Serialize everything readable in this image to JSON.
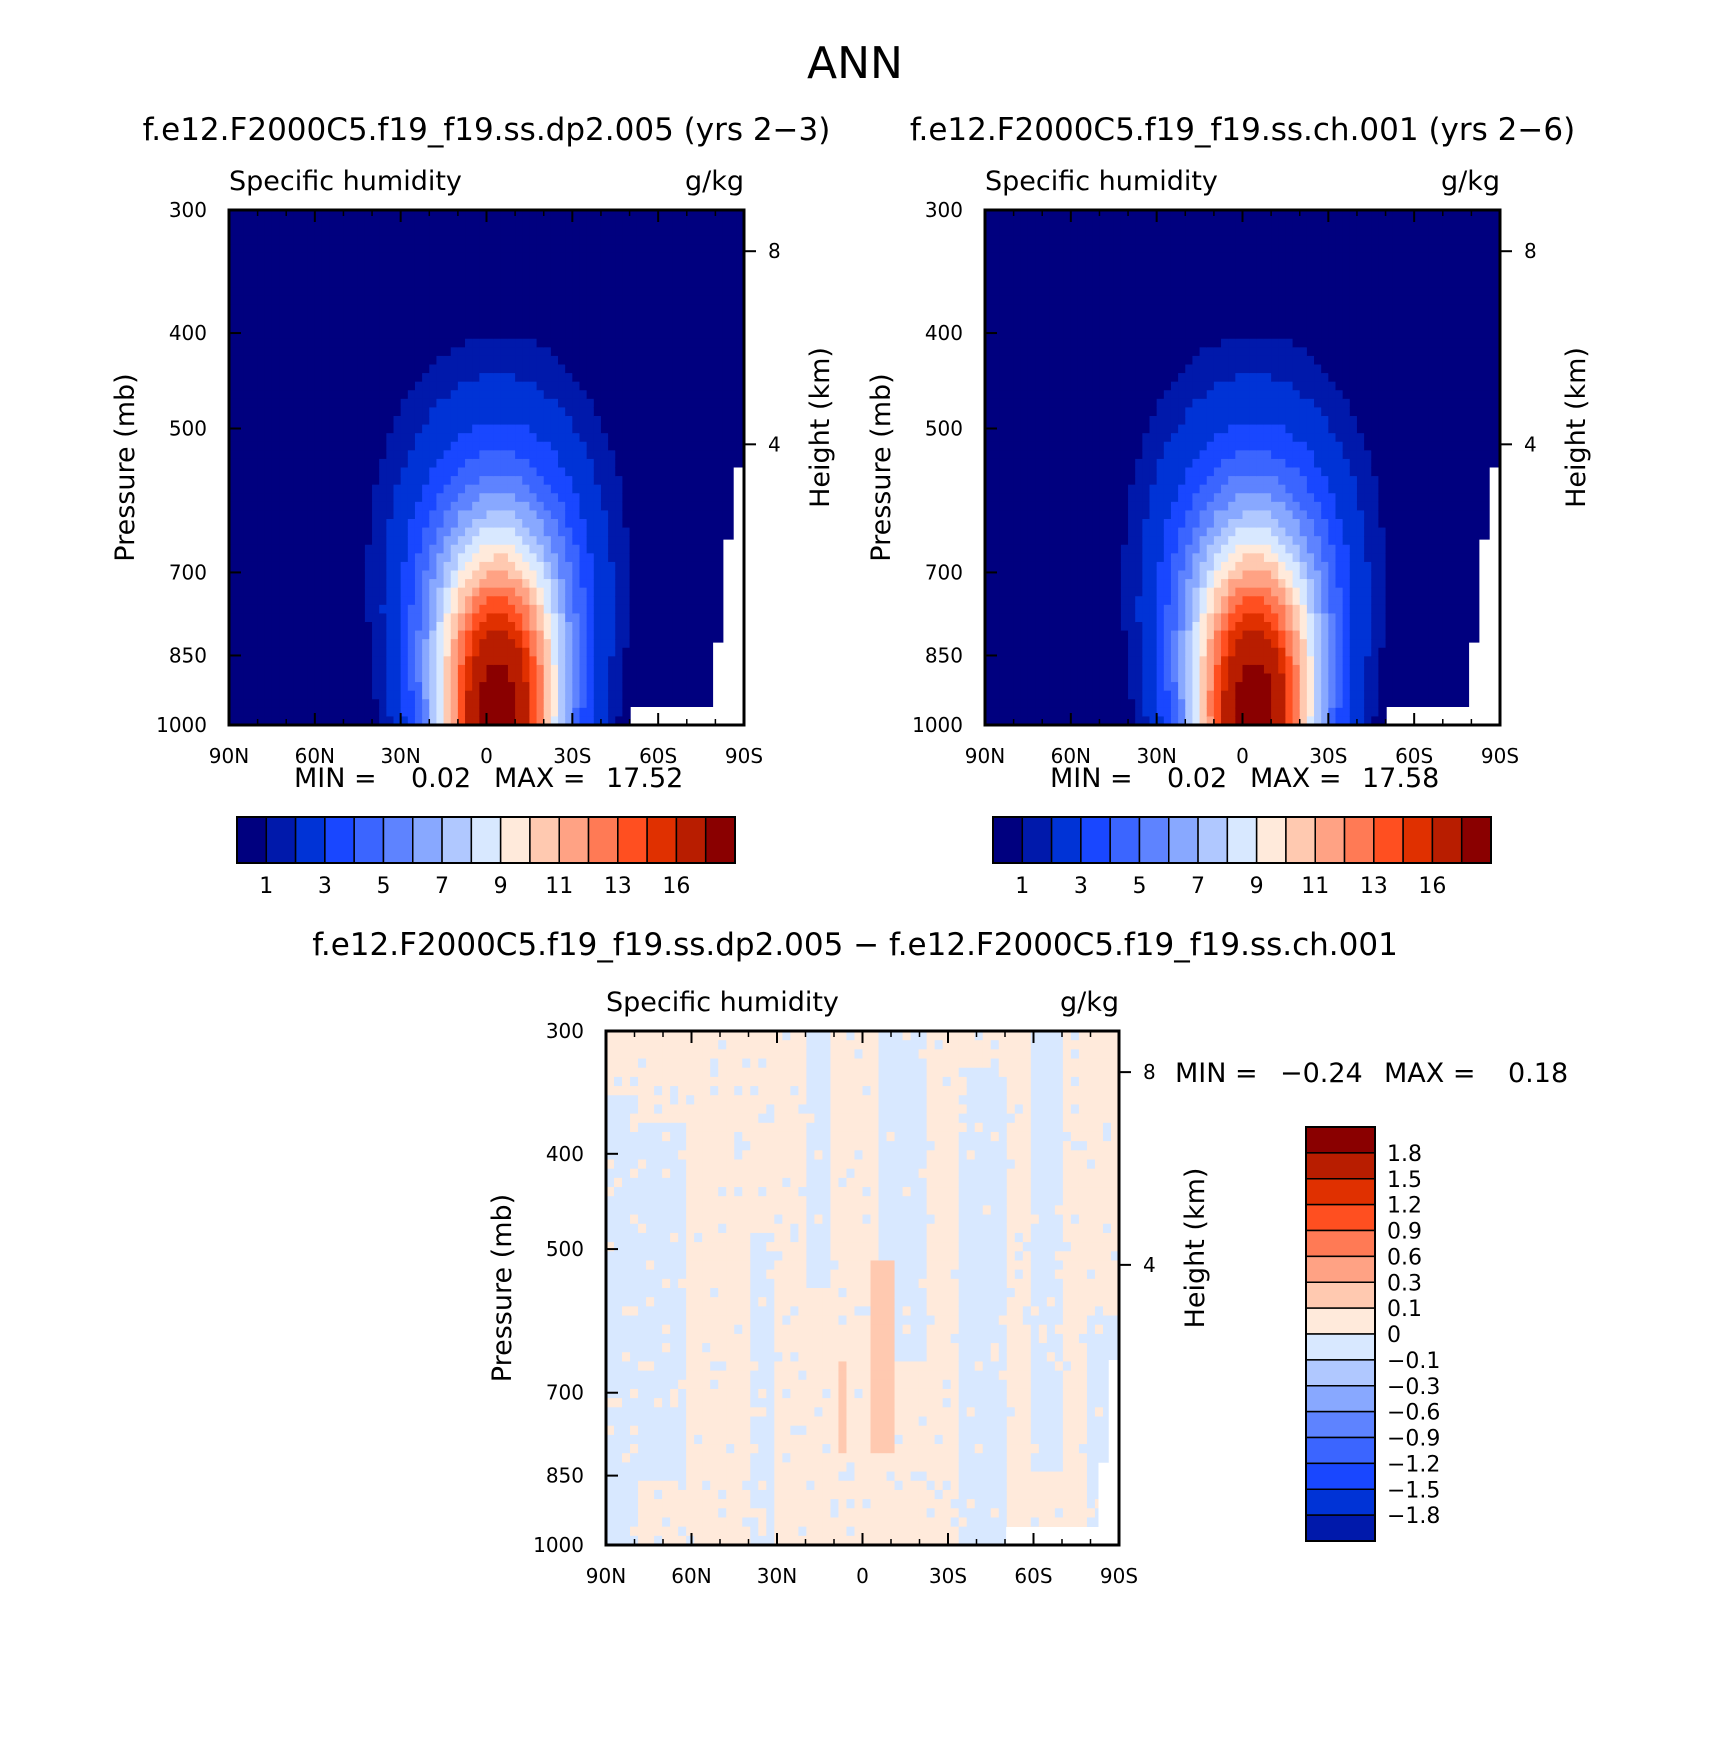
{
  "figure": {
    "title": "ANN",
    "diff_title": "f.e12.F2000C5.f19_f19.ss.dp2.005 − f.e12.F2000C5.f19_f19.ss.ch.001"
  },
  "colors": {
    "abs_palette": [
      "#00007f",
      "#0019ab",
      "#0033d6",
      "#1947ff",
      "#3b65ff",
      "#5e83ff",
      "#88a8ff",
      "#b0c8ff",
      "#d8e8ff",
      "#ffeadb",
      "#ffc9b0",
      "#ffa284",
      "#ff7a55",
      "#ff4f20",
      "#e03000",
      "#b81d00",
      "#8a0000"
    ],
    "diff_palette": [
      "#00007f",
      "#0019ab",
      "#0033d6",
      "#1947ff",
      "#3b65ff",
      "#5e83ff",
      "#88a8ff",
      "#b0c8ff",
      "#d8e8ff",
      "#ffeadb",
      "#ffc9b0",
      "#ffa284",
      "#ff7a55",
      "#ff4f20",
      "#e03000",
      "#b81d00",
      "#8a0000"
    ]
  },
  "chart_data": [
    {
      "type": "heatmap",
      "panel": "left",
      "title": "f.e12.F2000C5.f19_f19.ss.dp2.005 (yrs 2−3)",
      "variable": "Specific humidity",
      "units": "g/kg",
      "xlabel": "",
      "ylabel": "Pressure (mb)",
      "y2label": "Height (km)",
      "x_ticks": [
        "90N",
        "60N",
        "30N",
        "0",
        "30S",
        "60S",
        "90S"
      ],
      "y_ticks": [
        "300",
        "400",
        "500",
        "700",
        "850",
        "1000"
      ],
      "y2_ticks": [
        "8",
        "4"
      ],
      "ylim": [
        1000,
        300
      ],
      "y_scale": "log",
      "min_label": "MIN =",
      "min_value": "0.02",
      "max_label": "MAX =",
      "max_value": "17.52",
      "peak": 17.52,
      "colorbar_labels": [
        "1",
        "3",
        "5",
        "7",
        "9",
        "11",
        "13",
        "16"
      ],
      "colorbar_levels": [
        0.5,
        1,
        2,
        3,
        4,
        5,
        6,
        7,
        8,
        9,
        10,
        11,
        12,
        13,
        14,
        16
      ]
    },
    {
      "type": "heatmap",
      "panel": "right",
      "title": "f.e12.F2000C5.f19_f19.ss.ch.001 (yrs 2−6)",
      "variable": "Specific humidity",
      "units": "g/kg",
      "xlabel": "",
      "ylabel": "Pressure (mb)",
      "y2label": "Height (km)",
      "x_ticks": [
        "90N",
        "60N",
        "30N",
        "0",
        "30S",
        "60S",
        "90S"
      ],
      "y_ticks": [
        "300",
        "400",
        "500",
        "700",
        "850",
        "1000"
      ],
      "y2_ticks": [
        "8",
        "4"
      ],
      "ylim": [
        1000,
        300
      ],
      "y_scale": "log",
      "min_label": "MIN =",
      "min_value": "0.02",
      "max_label": "MAX =",
      "max_value": "17.58",
      "peak": 17.58,
      "colorbar_labels": [
        "1",
        "3",
        "5",
        "7",
        "9",
        "11",
        "13",
        "16"
      ],
      "colorbar_levels": [
        0.5,
        1,
        2,
        3,
        4,
        5,
        6,
        7,
        8,
        9,
        10,
        11,
        12,
        13,
        14,
        16
      ]
    },
    {
      "type": "heatmap",
      "panel": "difference",
      "variable": "Specific humidity",
      "units": "g/kg",
      "xlabel": "",
      "ylabel": "Pressure (mb)",
      "y2label": "Height (km)",
      "x_ticks": [
        "90N",
        "60N",
        "30N",
        "0",
        "30S",
        "60S",
        "90S"
      ],
      "y_ticks": [
        "300",
        "400",
        "500",
        "700",
        "850",
        "1000"
      ],
      "y2_ticks": [
        "8",
        "4"
      ],
      "ylim": [
        1000,
        300
      ],
      "y_scale": "log",
      "min_label": "MIN =",
      "min_value": "−0.24",
      "max_label": "MAX =",
      "max_value": "0.18",
      "colorbar_labels": [
        "1.8",
        "1.5",
        "1.2",
        "0.9",
        "0.6",
        "0.3",
        "0.1",
        "0",
        "−0.1",
        "−0.3",
        "−0.6",
        "−0.9",
        "−1.2",
        "−1.5",
        "−1.8"
      ]
    }
  ]
}
